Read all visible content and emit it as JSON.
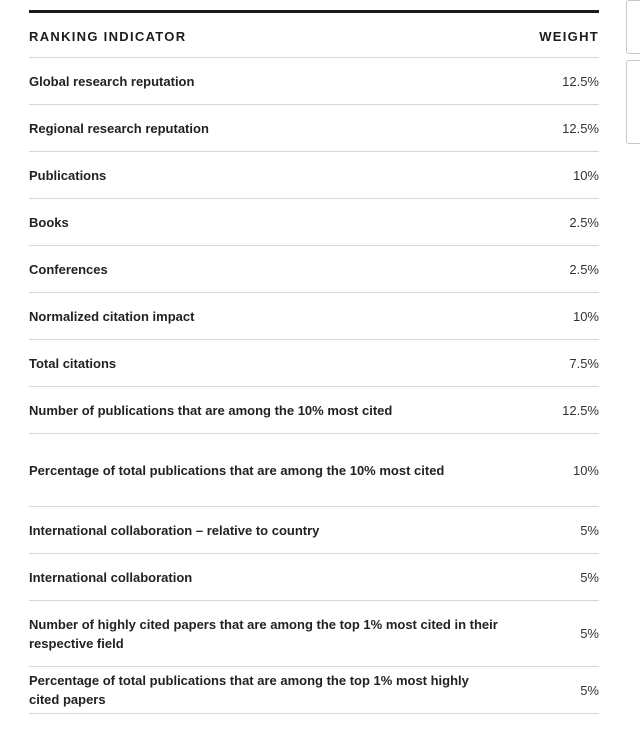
{
  "table": {
    "header": {
      "indicator": "RANKING INDICATOR",
      "weight": "WEIGHT"
    },
    "rows": [
      {
        "name": "Global research reputation",
        "weight": "12.5%"
      },
      {
        "name": "Regional research reputation",
        "weight": "12.5%"
      },
      {
        "name": "Publications",
        "weight": "10%"
      },
      {
        "name": "Books",
        "weight": "2.5%"
      },
      {
        "name": "Conferences",
        "weight": "2.5%"
      },
      {
        "name": "Normalized citation impact",
        "weight": "10%"
      },
      {
        "name": "Total citations",
        "weight": "7.5%"
      },
      {
        "name": "Number of publications that are among the 10% most cited",
        "weight": "12.5%"
      },
      {
        "name": "Percentage of total publications that are among the 10% most cited",
        "weight": "10%"
      },
      {
        "name": "International collaboration – relative to country",
        "weight": "5%"
      },
      {
        "name": "International collaboration",
        "weight": "5%"
      },
      {
        "name": "Number of highly cited papers that are among the top 1% most cited in their respective field",
        "weight": "5%"
      },
      {
        "name": "Percentage of total publications that are among the top 1% most highly cited papers",
        "weight": "5%"
      }
    ]
  }
}
